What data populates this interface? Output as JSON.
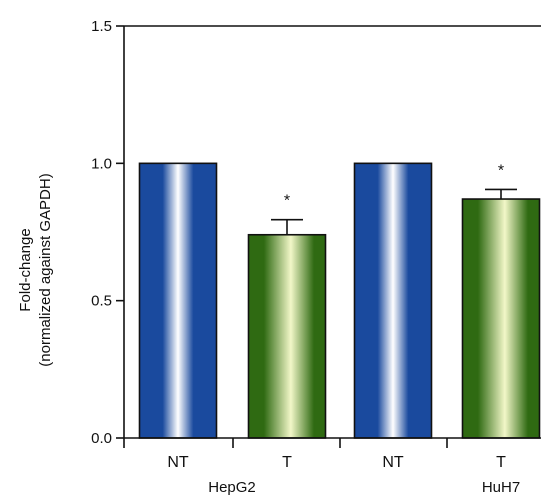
{
  "chart_data": {
    "type": "bar",
    "ylabel_line1": "Fold-change",
    "ylabel_line2": "(normalized against GAPDH)",
    "ylim": [
      0,
      1.5
    ],
    "yticks": [
      "0.0",
      "0.5",
      "1.0",
      "1.5"
    ],
    "ytick_values": [
      0,
      0.5,
      1.0,
      1.5
    ],
    "categories": [
      "NT",
      "T",
      "NT",
      "T"
    ],
    "groups": [
      {
        "label": "HepG2",
        "bars": [
          0,
          1
        ]
      },
      {
        "label": "HuH7",
        "bars": [
          2,
          3
        ]
      }
    ],
    "values": [
      1.0,
      0.74,
      1.0,
      0.87
    ],
    "errors": [
      0,
      0.055,
      0,
      0.035
    ],
    "significance": [
      "",
      "*",
      "",
      "*"
    ],
    "bar_styles": [
      "blue-gradient",
      "green-gradient",
      "blue-gradient",
      "green-gradient"
    ],
    "colors": {
      "blue_dark": "#1a4a9e",
      "blue_light": "#ffffff",
      "green_dark": "#2f6a12",
      "green_light": "#f2f7c8",
      "axis": "#111111"
    },
    "grid": false
  }
}
